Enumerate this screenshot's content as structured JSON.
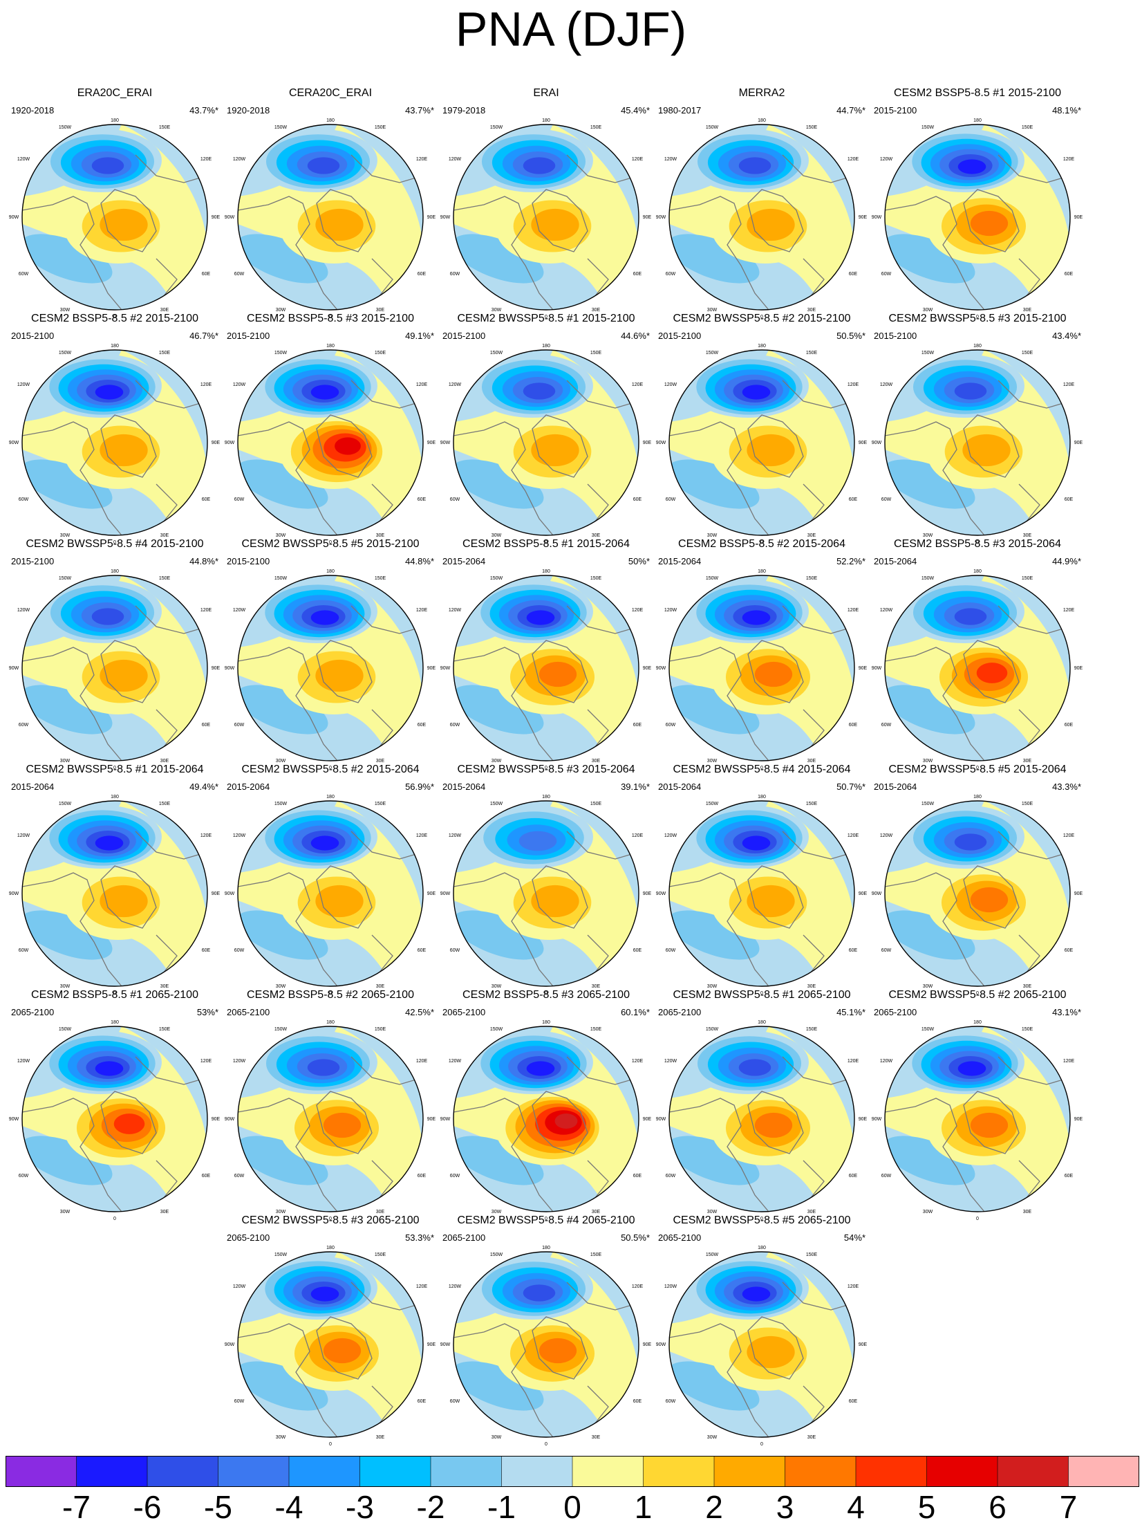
{
  "title": "PNA (DJF)",
  "longitude_labels": [
    "180",
    "150W",
    "150E",
    "120W",
    "120E",
    "90W",
    "90E",
    "60W",
    "60E",
    "30W",
    "30E",
    "0"
  ],
  "panels": [
    {
      "title": "ERA20C_ERAI",
      "period": "1920-2018",
      "variance": "43.7%*",
      "center_min": -6,
      "ridge_max": 2
    },
    {
      "title": "CERA20C_ERAI",
      "period": "1920-2018",
      "variance": "43.7%*",
      "center_min": -6,
      "ridge_max": 2
    },
    {
      "title": "ERAI",
      "period": "1979-2018",
      "variance": "45.4%*",
      "center_min": -6,
      "ridge_max": 2
    },
    {
      "title": "MERRA2",
      "period": "1980-2017",
      "variance": "44.7%*",
      "center_min": -6,
      "ridge_max": 2
    },
    {
      "title": "CESM2 BSSP5-8.5 #1 2015-2100",
      "period": "2015-2100",
      "variance": "48.1%*",
      "center_min": -7,
      "ridge_max": 3
    },
    {
      "title": "CESM2 BSSP5-8.5 #2 2015-2100",
      "period": "2015-2100",
      "variance": "46.7%*",
      "center_min": -7,
      "ridge_max": 2
    },
    {
      "title": "CESM2 BSSP5-8.5 #3 2015-2100",
      "period": "2015-2100",
      "variance": "49.1%*",
      "center_min": -7,
      "ridge_max": 5
    },
    {
      "title": "CESM2 BWSSP5-8.5 #1 2015-2100",
      "period": "2015-2100",
      "variance": "44.6%*",
      "center_min": -6,
      "ridge_max": 2
    },
    {
      "title": "CESM2 BWSSP5-8.5 #2 2015-2100",
      "period": "2015-2100",
      "variance": "50.5%*",
      "center_min": -7,
      "ridge_max": 2
    },
    {
      "title": "CESM2 BWSSP5-8.5 #3 2015-2100",
      "period": "2015-2100",
      "variance": "43.4%*",
      "center_min": -6,
      "ridge_max": 2
    },
    {
      "title": "CESM2 BWSSP5-8.5 #4 2015-2100",
      "period": "2015-2100",
      "variance": "44.8%*",
      "center_min": -6,
      "ridge_max": 2
    },
    {
      "title": "CESM2 BWSSP5-8.5 #5 2015-2100",
      "period": "2015-2100",
      "variance": "44.8%*",
      "center_min": -7,
      "ridge_max": 2
    },
    {
      "title": "CESM2 BSSP5-8.5 #1 2015-2064",
      "period": "2015-2064",
      "variance": "50%*",
      "center_min": -7,
      "ridge_max": 3
    },
    {
      "title": "CESM2 BSSP5-8.5 #2 2015-2064",
      "period": "2015-2064",
      "variance": "52.2%*",
      "center_min": -7,
      "ridge_max": 3
    },
    {
      "title": "CESM2 BSSP5-8.5 #3 2015-2064",
      "period": "2015-2064",
      "variance": "44.9%*",
      "center_min": -6,
      "ridge_max": 4
    },
    {
      "title": "CESM2 BWSSP5-8.5 #1 2015-2064",
      "period": "2015-2064",
      "variance": "49.4%*",
      "center_min": -7,
      "ridge_max": 2
    },
    {
      "title": "CESM2 BWSSP5-8.5 #2 2015-2064",
      "period": "2015-2064",
      "variance": "56.9%*",
      "center_min": -7,
      "ridge_max": 2
    },
    {
      "title": "CESM2 BWSSP5-8.5 #3 2015-2064",
      "period": "2015-2064",
      "variance": "39.1%*",
      "center_min": -5,
      "ridge_max": 2
    },
    {
      "title": "CESM2 BWSSP5-8.5 #4 2015-2064",
      "period": "2015-2064",
      "variance": "50.7%*",
      "center_min": -7,
      "ridge_max": 2
    },
    {
      "title": "CESM2 BWSSP5-8.5 #5 2015-2064",
      "period": "2015-2064",
      "variance": "43.3%*",
      "center_min": -6,
      "ridge_max": 3
    },
    {
      "title": "CESM2 BSSP5-8.5 #1 2065-2100",
      "period": "2065-2100",
      "variance": "53%*",
      "center_min": -7,
      "ridge_max": 4
    },
    {
      "title": "CESM2 BSSP5-8.5 #2 2065-2100",
      "period": "2065-2100",
      "variance": "42.5%*",
      "center_min": -6,
      "ridge_max": 3
    },
    {
      "title": "CESM2 BSSP5-8.5 #3 2065-2100",
      "period": "2065-2100",
      "variance": "60.1%*",
      "center_min": -7,
      "ridge_max": 6
    },
    {
      "title": "CESM2 BWSSP5-8.5 #1 2065-2100",
      "period": "2065-2100",
      "variance": "45.1%*",
      "center_min": -6,
      "ridge_max": 3
    },
    {
      "title": "CESM2 BWSSP5-8.5 #2 2065-2100",
      "period": "2065-2100",
      "variance": "43.1%*",
      "center_min": -7,
      "ridge_max": 3
    },
    {
      "title": "CESM2 BWSSP5-8.5 #3 2065-2100",
      "period": "2065-2100",
      "variance": "53.3%*",
      "center_min": -7,
      "ridge_max": 3
    },
    {
      "title": "CESM2 BWSSP5-8.5 #4 2065-2100",
      "period": "2065-2100",
      "variance": "50.5%*",
      "center_min": -6,
      "ridge_max": 3
    },
    {
      "title": "CESM2 BWSSP5-8.5 #5 2065-2100",
      "period": "2065-2100",
      "variance": "54%*",
      "center_min": -7,
      "ridge_max": 2
    }
  ],
  "colorbar": {
    "labels": [
      "-7",
      "-6",
      "-5",
      "-4",
      "-3",
      "-2",
      "-1",
      "0",
      "1",
      "2",
      "3",
      "4",
      "5",
      "6",
      "7"
    ],
    "colors": [
      "#8a2be2",
      "#1a1aff",
      "#2f4fe8",
      "#3c78f0",
      "#1e96ff",
      "#00bfff",
      "#78c8f0",
      "#b4dcf0",
      "#fafa9a",
      "#ffd732",
      "#ffaa00",
      "#ff7800",
      "#ff3200",
      "#e60000",
      "#d21e1e",
      "#ffb4b4"
    ]
  },
  "style": {
    "ocean_level": "#b4dcf0",
    "land_level": "#fafa9a",
    "coastline": "#777777"
  }
}
